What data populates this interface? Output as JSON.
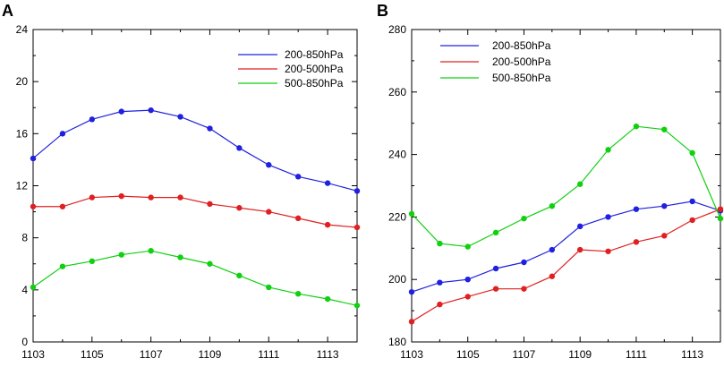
{
  "chart_data": [
    {
      "type": "line",
      "panel_label": "A",
      "categories": [
        "1103",
        "1104",
        "1105",
        "1106",
        "1107",
        "1108",
        "1109",
        "1110",
        "1111",
        "1112",
        "1113",
        "1114"
      ],
      "xtick_labels": [
        "1103",
        "1105",
        "1107",
        "1109",
        "1111",
        "1113"
      ],
      "ylim": [
        0,
        24
      ],
      "yticks": [
        0,
        4,
        8,
        12,
        16,
        20,
        24
      ],
      "legend_position": "top-right",
      "series": [
        {
          "name": "200-850hPa",
          "color": "#2020e0",
          "values": [
            14.1,
            16.0,
            17.1,
            17.7,
            17.8,
            17.3,
            16.4,
            14.9,
            13.6,
            12.7,
            12.2,
            11.6
          ]
        },
        {
          "name": "200-500hPa",
          "color": "#e02020",
          "values": [
            10.4,
            10.4,
            11.1,
            11.2,
            11.1,
            11.1,
            10.6,
            10.3,
            10.0,
            9.5,
            9.0,
            8.8
          ]
        },
        {
          "name": "500-850hPa",
          "color": "#10d010",
          "values": [
            4.2,
            5.8,
            6.2,
            6.7,
            7.0,
            6.5,
            6.0,
            5.1,
            4.2,
            3.7,
            3.3,
            2.8
          ]
        }
      ]
    },
    {
      "type": "line",
      "panel_label": "B",
      "categories": [
        "1103",
        "1104",
        "1105",
        "1106",
        "1107",
        "1108",
        "1109",
        "1110",
        "1111",
        "1112",
        "1113",
        "1114"
      ],
      "xtick_labels": [
        "1103",
        "1105",
        "1107",
        "1109",
        "1111",
        "1113"
      ],
      "ylim": [
        180,
        280
      ],
      "yticks": [
        180,
        200,
        220,
        240,
        260,
        280
      ],
      "legend_position": "top-left",
      "series": [
        {
          "name": "200-850hPa",
          "color": "#2020e0",
          "values": [
            196,
            199,
            200,
            203.5,
            205.5,
            209.5,
            217,
            220,
            222.5,
            223.5,
            225,
            222
          ]
        },
        {
          "name": "200-500hPa",
          "color": "#e02020",
          "values": [
            186.5,
            192,
            194.5,
            197,
            197,
            201,
            209.5,
            209,
            212,
            214,
            219,
            222.5
          ]
        },
        {
          "name": "500-850hPa",
          "color": "#10d010",
          "values": [
            221,
            211.5,
            210.5,
            215,
            219.5,
            223.5,
            230.5,
            241.5,
            249,
            248,
            240.5,
            219.5
          ]
        }
      ]
    }
  ]
}
